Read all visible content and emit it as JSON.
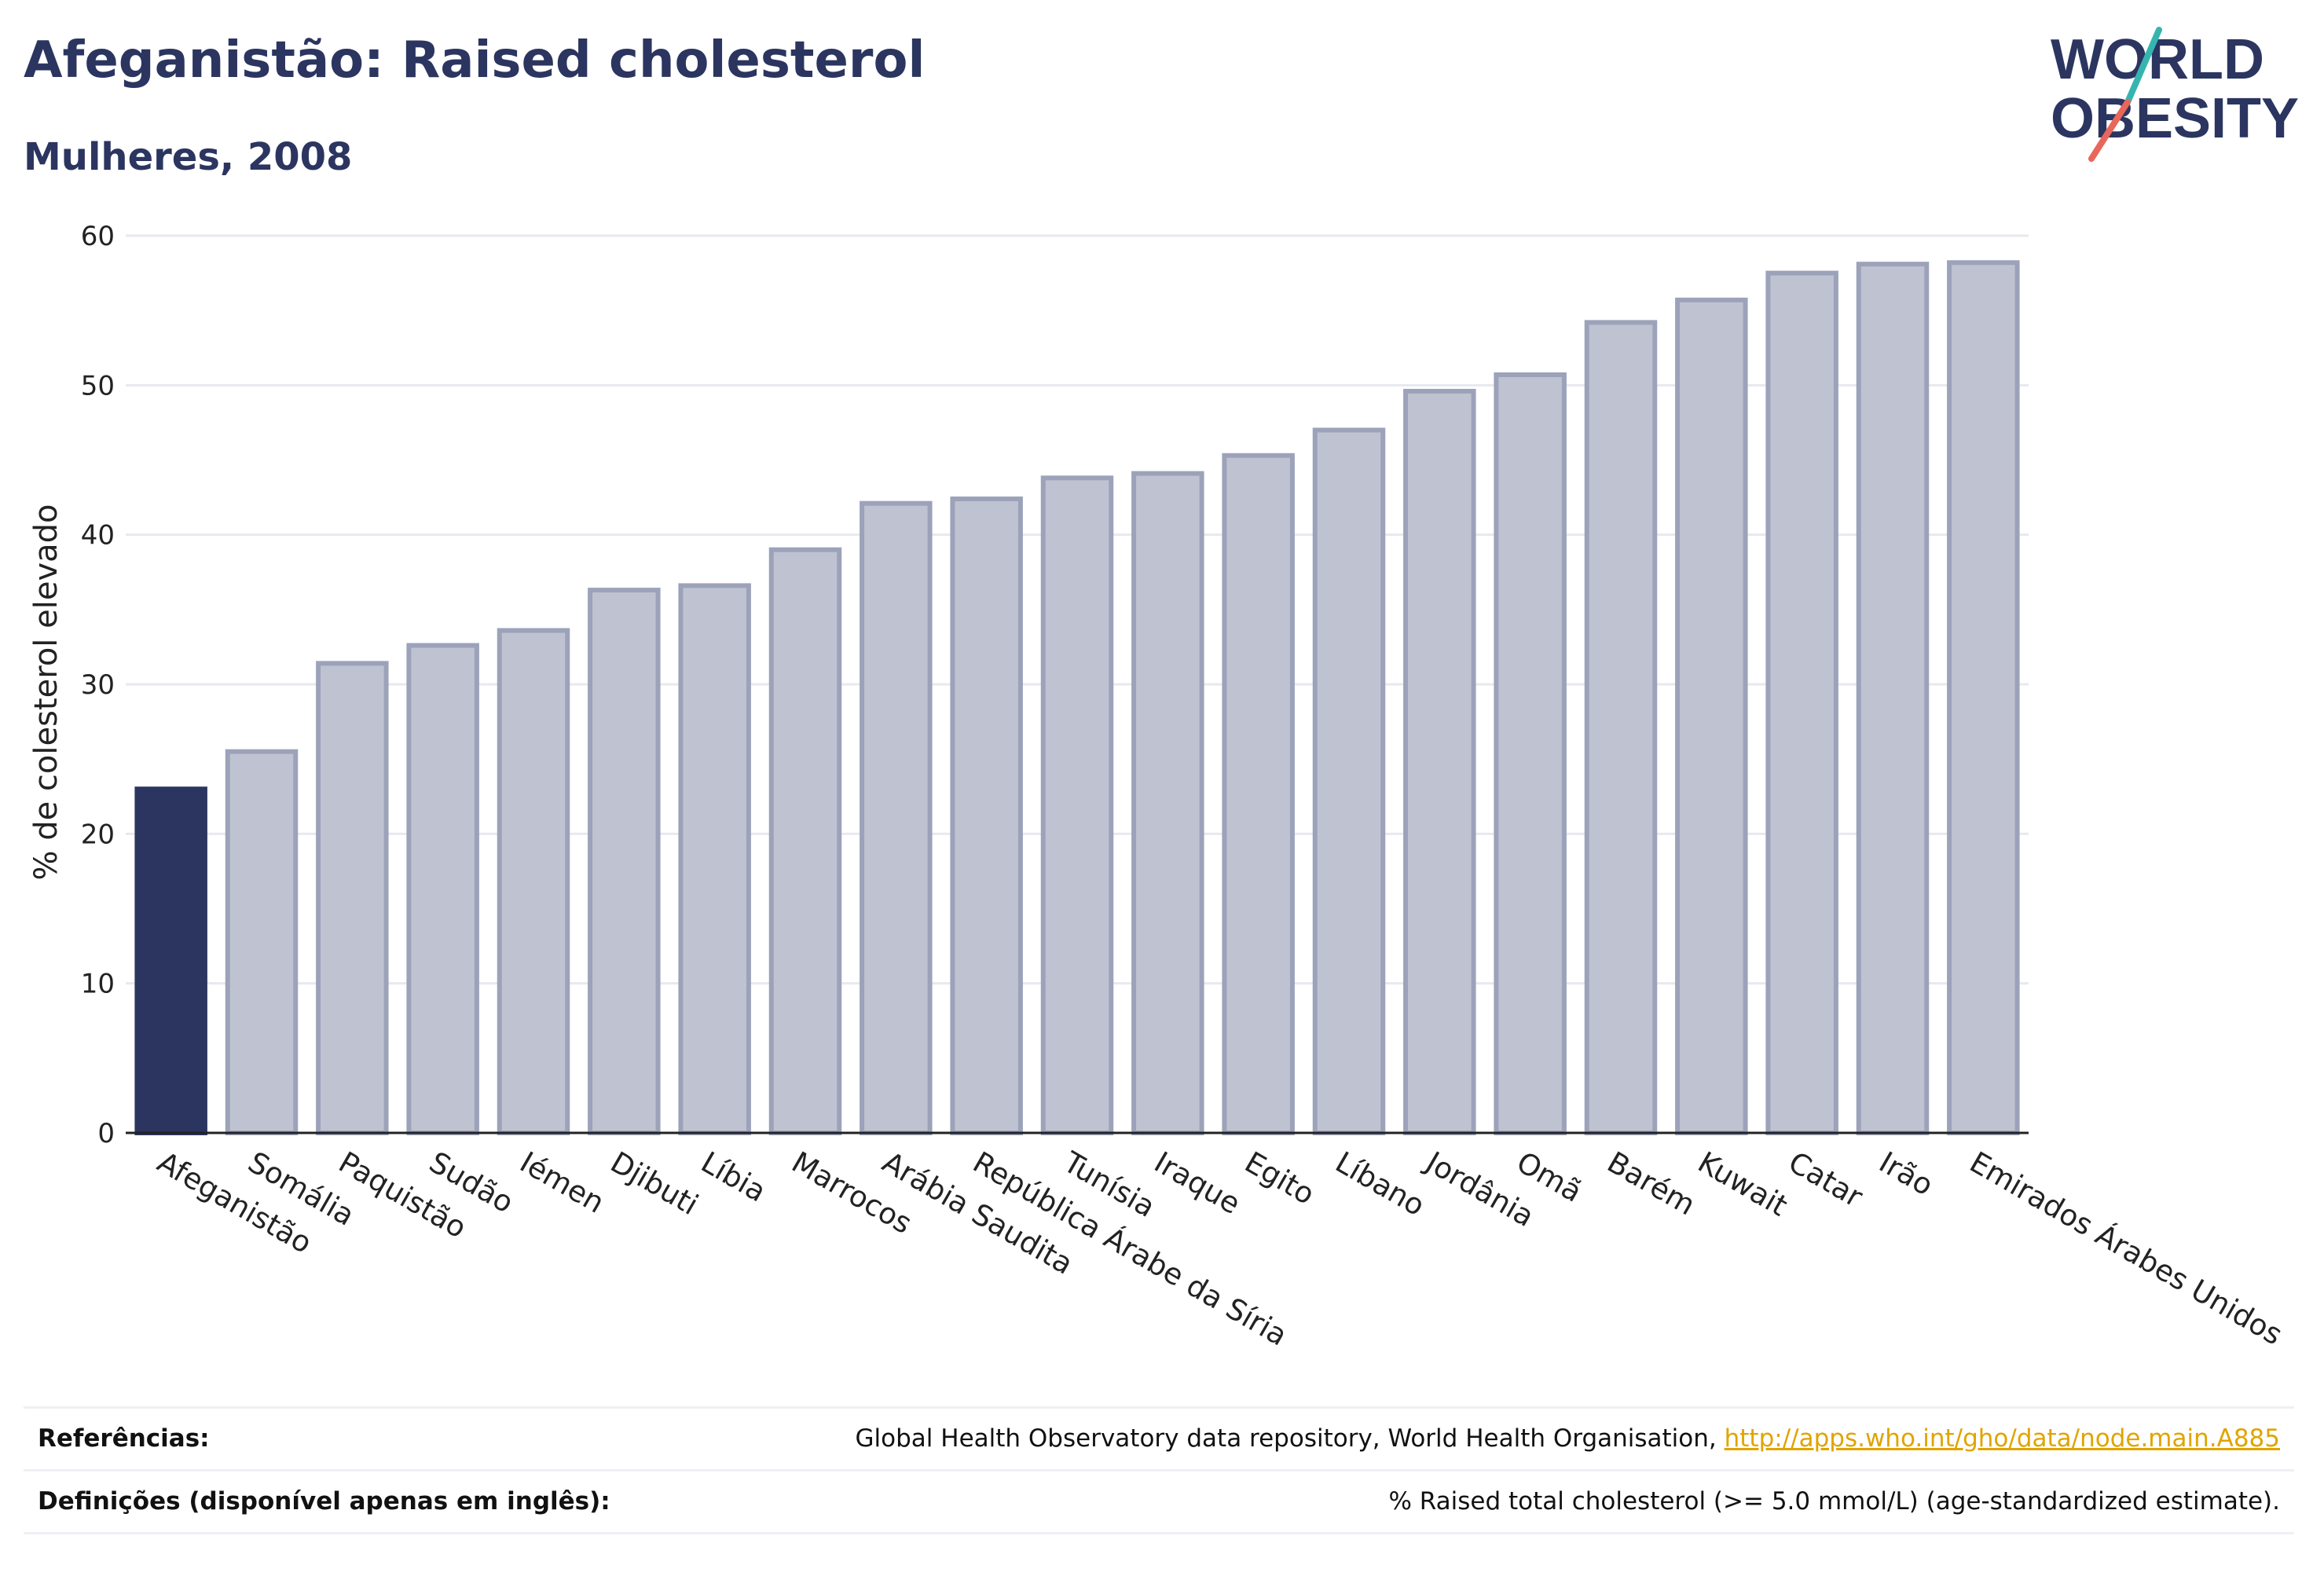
{
  "header": {
    "title": "Afeganistão: Raised cholesterol",
    "subtitle": "Mulheres, 2008"
  },
  "logo": {
    "line1": "WORLD",
    "line2": "OBESITY"
  },
  "colors": {
    "highlight": "#2b3560",
    "bar_fill": "#bfc3d1",
    "bar_stroke": "#9ca2b9",
    "grid": "#e8e9ef",
    "logo_teal": "#36b5b0",
    "logo_coral": "#e8675a",
    "link": "#e0a400"
  },
  "chart_data": {
    "type": "bar",
    "ylabel": "% de colesterol elevado",
    "xlabel": "",
    "ylim": [
      0,
      60
    ],
    "yticks": [
      0,
      10,
      20,
      30,
      40,
      50,
      60
    ],
    "grid": true,
    "highlight_category": "Afeganistão",
    "categories": [
      "Afeganistão",
      "Somália",
      "Paquistão",
      "Sudão",
      "Iémen",
      "Djibuti",
      "Líbia",
      "Marrocos",
      "Arábia Saudita",
      "República Árabe da Síria",
      "Tunísia",
      "Iraque",
      "Egito",
      "Líbano",
      "Jordânia",
      "Omã",
      "Barém",
      "Kuwait",
      "Catar",
      "Irão",
      "Emirados Árabes Unidos"
    ],
    "values": [
      23.0,
      25.5,
      31.4,
      32.6,
      33.6,
      36.3,
      36.6,
      39.0,
      42.1,
      42.4,
      43.8,
      44.1,
      45.3,
      47.0,
      49.6,
      50.7,
      54.2,
      55.7,
      57.5,
      58.1,
      58.2
    ]
  },
  "footer": {
    "references_label": "Referências:",
    "references_text": "Global Health Observatory data repository, World Health Organisation, ",
    "references_link": "http://apps.who.int/gho/data/node.main.A885",
    "definitions_label": "Definições (disponível apenas em inglês):",
    "definitions_text": "% Raised total cholesterol (>= 5.0 mmol/L) (age-standardized estimate)."
  }
}
